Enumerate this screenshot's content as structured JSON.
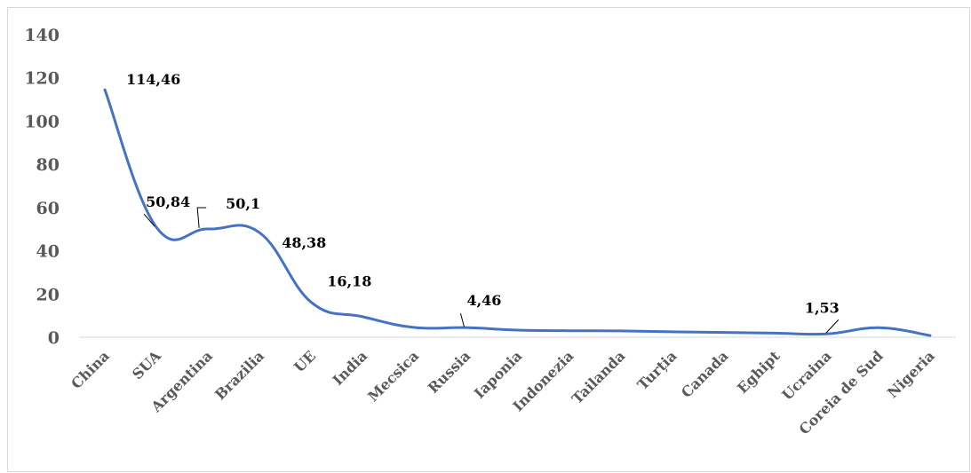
{
  "chart_data": {
    "type": "line",
    "title": "",
    "xlabel": "",
    "ylabel": "",
    "ylim": [
      0,
      140
    ],
    "yticks": [
      0,
      20,
      40,
      60,
      80,
      100,
      120,
      140
    ],
    "grid": false,
    "legend": "none",
    "line_color": "#4472C4",
    "smooth": true,
    "categories": [
      "China",
      "SUA",
      "Argentina",
      "Brazilia",
      "UE",
      "India",
      "Mecsica",
      "Russia",
      "Iaponia",
      "Indonezia",
      "Tailanda",
      "Turția",
      "Canada",
      "Eghipt",
      "Ucraina",
      "Coreia de Sud",
      "Nigeria"
    ],
    "values": [
      114.46,
      50.84,
      50.1,
      48.38,
      16.18,
      9.5,
      4.5,
      4.46,
      3.3,
      3.0,
      2.9,
      2.5,
      2.2,
      1.9,
      1.53,
      4.4,
      0.8
    ],
    "data_labels": [
      {
        "index": 0,
        "text": "114,46"
      },
      {
        "index": 1,
        "text": "50,84"
      },
      {
        "index": 2,
        "text": "50,1"
      },
      {
        "index": 3,
        "text": "48,38"
      },
      {
        "index": 4,
        "text": "16,18"
      },
      {
        "index": 7,
        "text": "4,46"
      },
      {
        "index": 14,
        "text": "1,53"
      }
    ]
  }
}
